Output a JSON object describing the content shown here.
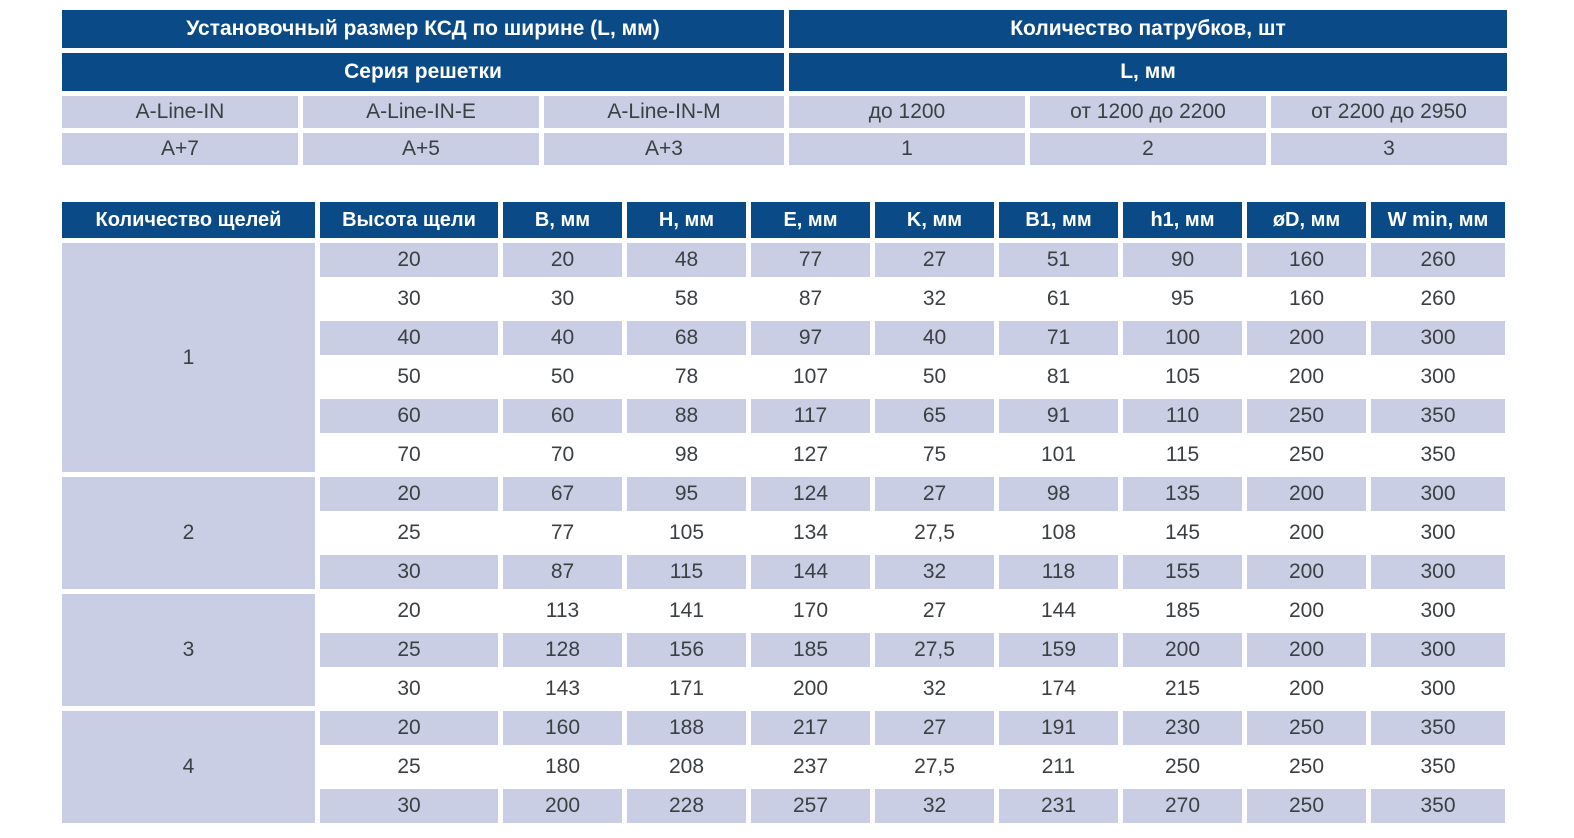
{
  "colors": {
    "header_bg": "#0a4b87",
    "shaded_cell_bg": "#c9cee4",
    "header_text": "#ffffff",
    "data_text": "#3c4043"
  },
  "top_table": {
    "header_left": "Установочный размер КСД по ширине (L, мм)",
    "header_right": "Количество патрубков, шт",
    "subheader_left": "Серия решетки",
    "subheader_right": "L, мм",
    "series_row": [
      "A-Line-IN",
      "A-Line-IN-E",
      "A-Line-IN-M",
      "до 1200",
      "от 1200 до 2200",
      "от 2200 до 2950"
    ],
    "value_row": [
      "A+7",
      "A+5",
      "A+3",
      "1",
      "2",
      "3"
    ]
  },
  "dimensions_table": {
    "headers": [
      "Количество щелей",
      "Высота щели",
      "B, мм",
      "H, мм",
      "E, мм",
      "K, мм",
      "B1, мм",
      "h1, мм",
      "øD, мм",
      "W min, мм"
    ],
    "groups": [
      {
        "slot_count": "1",
        "rows": [
          [
            "20",
            "20",
            "48",
            "77",
            "27",
            "51",
            "90",
            "160",
            "260"
          ],
          [
            "30",
            "30",
            "58",
            "87",
            "32",
            "61",
            "95",
            "160",
            "260"
          ],
          [
            "40",
            "40",
            "68",
            "97",
            "40",
            "71",
            "100",
            "200",
            "300"
          ],
          [
            "50",
            "50",
            "78",
            "107",
            "50",
            "81",
            "105",
            "200",
            "300"
          ],
          [
            "60",
            "60",
            "88",
            "117",
            "65",
            "91",
            "110",
            "250",
            "350"
          ],
          [
            "70",
            "70",
            "98",
            "127",
            "75",
            "101",
            "115",
            "250",
            "350"
          ]
        ]
      },
      {
        "slot_count": "2",
        "rows": [
          [
            "20",
            "67",
            "95",
            "124",
            "27",
            "98",
            "135",
            "200",
            "300"
          ],
          [
            "25",
            "77",
            "105",
            "134",
            "27,5",
            "108",
            "145",
            "200",
            "300"
          ],
          [
            "30",
            "87",
            "115",
            "144",
            "32",
            "118",
            "155",
            "200",
            "300"
          ]
        ]
      },
      {
        "slot_count": "3",
        "rows": [
          [
            "20",
            "113",
            "141",
            "170",
            "27",
            "144",
            "185",
            "200",
            "300"
          ],
          [
            "25",
            "128",
            "156",
            "185",
            "27,5",
            "159",
            "200",
            "200",
            "300"
          ],
          [
            "30",
            "143",
            "171",
            "200",
            "32",
            "174",
            "215",
            "200",
            "300"
          ]
        ]
      },
      {
        "slot_count": "4",
        "rows": [
          [
            "20",
            "160",
            "188",
            "217",
            "27",
            "191",
            "230",
            "250",
            "350"
          ],
          [
            "25",
            "180",
            "208",
            "237",
            "27,5",
            "211",
            "250",
            "250",
            "350"
          ],
          [
            "30",
            "200",
            "228",
            "257",
            "32",
            "231",
            "270",
            "250",
            "350"
          ]
        ]
      }
    ]
  }
}
